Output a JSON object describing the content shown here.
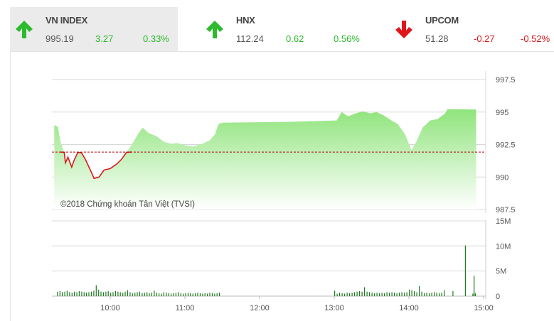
{
  "indices": [
    {
      "name": "VN INDEX",
      "value": "995.19",
      "change": "3.27",
      "percent": "0.33%",
      "direction": "up",
      "active": true
    },
    {
      "name": "HNX",
      "value": "112.24",
      "change": "0.62",
      "percent": "0.56%",
      "direction": "up",
      "active": false
    },
    {
      "name": "UPCOM",
      "value": "51.28",
      "change": "-0.27",
      "percent": "-0.52%",
      "direction": "down",
      "active": false
    }
  ],
  "colors": {
    "up": "#2dba2d",
    "down": "#e0161b",
    "area": "#9be88a",
    "volume": "#1e7a1e",
    "reference": "#b00000"
  },
  "chart_data": [
    {
      "type": "area",
      "copyright": "©2018 Chứng khoán Tân Việt (TVSI)",
      "reference_value": 991.92,
      "ylim": [
        987.5,
        997.5
      ],
      "y_ticks": [
        "997.5",
        "995",
        "992.5",
        "990",
        "987.5"
      ],
      "x_ticks": [
        "10:00",
        "11:00",
        "12:00",
        "13:00",
        "14:00",
        "15:00"
      ],
      "grid": true,
      "points": [
        [
          "09:15",
          994.0
        ],
        [
          "09:18",
          993.86
        ],
        [
          "09:20",
          992.72
        ],
        [
          "09:23",
          991.9
        ],
        [
          "09:24",
          991.09
        ],
        [
          "09:26",
          991.52
        ],
        [
          "09:29",
          990.76
        ],
        [
          "09:31",
          991.3
        ],
        [
          "09:34",
          991.9
        ],
        [
          "09:37",
          991.85
        ],
        [
          "09:40",
          991.36
        ],
        [
          "09:44",
          990.54
        ],
        [
          "09:47",
          989.89
        ],
        [
          "09:51",
          990.0
        ],
        [
          "09:55",
          990.54
        ],
        [
          "10:00",
          990.65
        ],
        [
          "10:05",
          990.98
        ],
        [
          "10:09",
          991.36
        ],
        [
          "10:13",
          991.9
        ],
        [
          "10:17",
          992.45
        ],
        [
          "10:22",
          993.26
        ],
        [
          "10:26",
          993.8
        ],
        [
          "10:31",
          993.37
        ],
        [
          "10:37",
          993.15
        ],
        [
          "10:43",
          992.72
        ],
        [
          "10:49",
          992.55
        ],
        [
          "10:54",
          992.61
        ],
        [
          "11:00",
          992.45
        ],
        [
          "11:06",
          992.34
        ],
        [
          "11:14",
          992.55
        ],
        [
          "11:20",
          992.83
        ],
        [
          "11:24",
          993.26
        ],
        [
          "11:27",
          994.08
        ],
        [
          "11:30",
          994.18
        ],
        [
          "12:20",
          994.24
        ],
        [
          "13:02",
          994.35
        ],
        [
          "13:06",
          995.0
        ],
        [
          "13:11",
          994.67
        ],
        [
          "13:17",
          994.89
        ],
        [
          "13:23",
          995.05
        ],
        [
          "13:29",
          994.89
        ],
        [
          "13:34",
          995.0
        ],
        [
          "13:40",
          994.73
        ],
        [
          "13:46",
          994.35
        ],
        [
          "13:51",
          994.08
        ],
        [
          "13:57",
          993.26
        ],
        [
          "14:02",
          992.07
        ],
        [
          "14:06",
          992.72
        ],
        [
          "14:11",
          993.8
        ],
        [
          "14:17",
          994.35
        ],
        [
          "14:23",
          994.46
        ],
        [
          "14:29",
          994.89
        ],
        [
          "14:31",
          995.22
        ],
        [
          "14:54",
          995.19
        ]
      ]
    },
    {
      "type": "bar",
      "ylim": [
        0,
        15
      ],
      "y_ticks": [
        "15M",
        "10M",
        "5M",
        "0"
      ],
      "unit": "M",
      "morning_start": "09:15",
      "afternoon_start": "13:00",
      "interval_min": 2,
      "morning": [
        0.9,
        1.0,
        0.8,
        0.9,
        1.1,
        0.8,
        0.7,
        0.9,
        0.8,
        1.0,
        0.9,
        0.8,
        0.7,
        0.8,
        0.9,
        1.1,
        2.2,
        1.3,
        0.9,
        0.8,
        0.9,
        1.0,
        0.7,
        0.8,
        1.0,
        0.9,
        0.8,
        0.7,
        0.9,
        1.2,
        0.8,
        0.6,
        0.7,
        0.8,
        0.9,
        0.6,
        0.7,
        0.8,
        0.6,
        0.7,
        1.1,
        0.7,
        0.6,
        0.5,
        0.8,
        0.7,
        0.6,
        0.5,
        0.6,
        0.7,
        0.8,
        0.6,
        0.5,
        0.6,
        0.7,
        0.6,
        0.5,
        0.6,
        0.7,
        0.6,
        0.5,
        0.6,
        0.5,
        0.7,
        0.6,
        0.5,
        0.6,
        0.7
      ],
      "afternoon": [
        1.1,
        0.5,
        0.7,
        0.6,
        0.5,
        0.7,
        0.6,
        0.7,
        0.8,
        0.9,
        1.0,
        0.9,
        1.8,
        0.9,
        0.8,
        0.7,
        0.6,
        0.7,
        0.6,
        0.7,
        0.6,
        0.8,
        0.7,
        0.8,
        0.7,
        0.6,
        0.7,
        0.8,
        0.7,
        0.8,
        1.3,
        1.2,
        1.0,
        0.8,
        2.0,
        0.9,
        0.6,
        0.7,
        0.6,
        0.7,
        0.8,
        0.7,
        0.6,
        0.7,
        1.2
      ],
      "late": [
        [
          "14:35",
          1.0
        ],
        [
          "14:45",
          10.2
        ],
        [
          "14:51",
          0.5
        ],
        [
          "14:52",
          4.1
        ],
        [
          "14:53",
          0.6
        ]
      ]
    }
  ]
}
